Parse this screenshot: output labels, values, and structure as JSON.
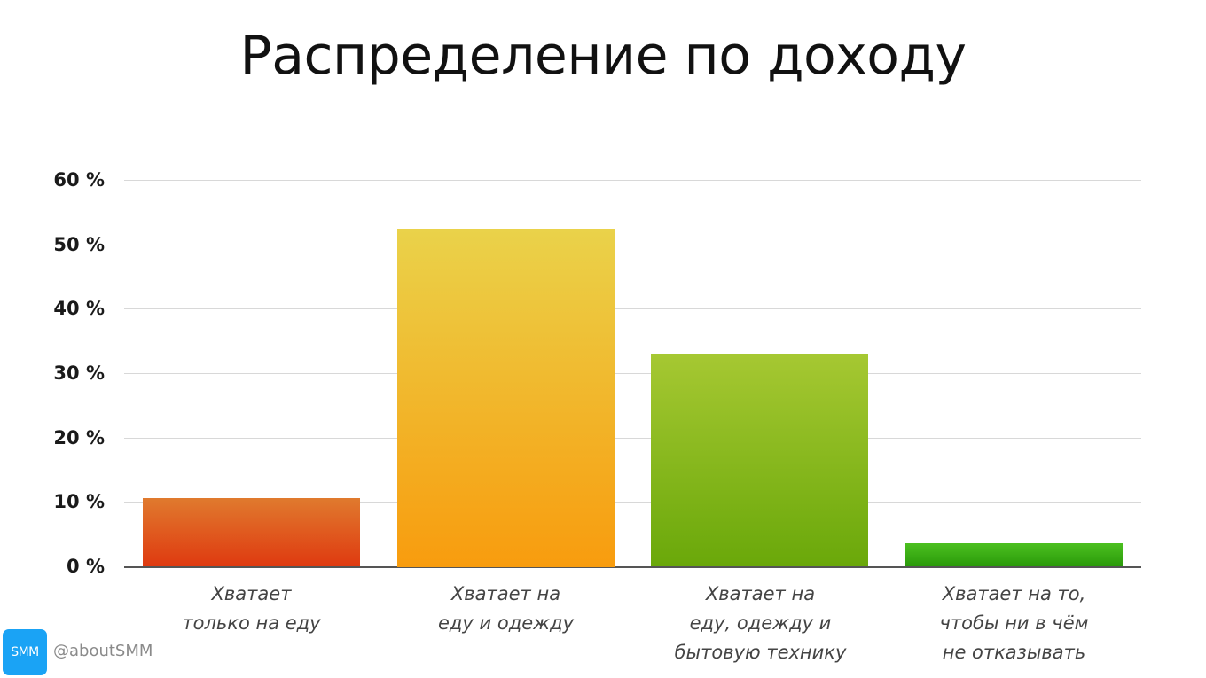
{
  "title": "Распределение по доходу",
  "chart_data": {
    "type": "bar",
    "title": "Распределение по доходу",
    "xlabel": "",
    "ylabel": "",
    "ylim": [
      0,
      60
    ],
    "yticks": [
      "0 %",
      "10 %",
      "20 %",
      "30 %",
      "40 %",
      "50 %",
      "60 %"
    ],
    "grid": true,
    "legend": null,
    "categories": [
      "Хватает только на еду",
      "Хватает на еду и одежду",
      "Хватает на еду, одежду и бытовую технику",
      "Хватает на то, чтобы ни в чём не отказывать"
    ],
    "category_lines": [
      [
        "Хватает",
        "только на еду"
      ],
      [
        "Хватает на",
        "еду и одежду"
      ],
      [
        "Хватает на",
        "еду, одежду и",
        "бытовую технику"
      ],
      [
        "Хватает на то,",
        "чтобы ни в чём",
        "не отказывать"
      ]
    ],
    "values": [
      10.6,
      52.5,
      33.0,
      3.6
    ],
    "colors": [
      {
        "top": "#e07a2e",
        "bottom": "#df3a10"
      },
      {
        "top": "#ead24a",
        "bottom": "#f89c0e"
      },
      {
        "top": "#a6c832",
        "bottom": "#6aa80a"
      },
      {
        "top": "#4cc020",
        "bottom": "#2a9a0a"
      }
    ]
  },
  "footer": {
    "logo_text": "SMM",
    "handle": "@aboutSMM",
    "logo_color": "#1aa3f5"
  }
}
